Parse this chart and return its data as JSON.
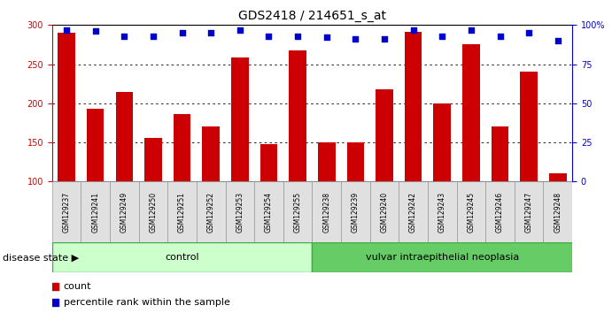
{
  "title": "GDS2418 / 214651_s_at",
  "samples": [
    "GSM129237",
    "GSM129241",
    "GSM129249",
    "GSM129250",
    "GSM129251",
    "GSM129252",
    "GSM129253",
    "GSM129254",
    "GSM129255",
    "GSM129238",
    "GSM129239",
    "GSM129240",
    "GSM129242",
    "GSM129243",
    "GSM129245",
    "GSM129246",
    "GSM129247",
    "GSM129248"
  ],
  "counts": [
    290,
    193,
    215,
    156,
    186,
    170,
    258,
    148,
    268,
    150,
    150,
    218,
    291,
    200,
    276,
    170,
    240,
    110
  ],
  "percentiles": [
    97,
    96,
    93,
    93,
    95,
    95,
    97,
    93,
    93,
    92,
    91,
    91,
    97,
    93,
    97,
    93,
    95,
    90
  ],
  "group1_label": "control",
  "group1_count": 9,
  "group2_label": "vulvar intraepithelial neoplasia",
  "group2_count": 9,
  "disease_state_label": "disease state",
  "legend_count": "count",
  "legend_percentile": "percentile rank within the sample",
  "bar_color": "#cc0000",
  "dot_color": "#0000cc",
  "group1_bg": "#ccffcc",
  "group2_bg": "#66cc66",
  "ylim_left": [
    100,
    300
  ],
  "ylim_right": [
    0,
    100
  ],
  "yticks_left": [
    100,
    150,
    200,
    250,
    300
  ],
  "yticks_right": [
    0,
    25,
    50,
    75,
    100
  ],
  "grid_values": [
    150,
    200,
    250
  ],
  "title_fontsize": 10,
  "tick_fontsize": 7,
  "label_fontsize": 8
}
